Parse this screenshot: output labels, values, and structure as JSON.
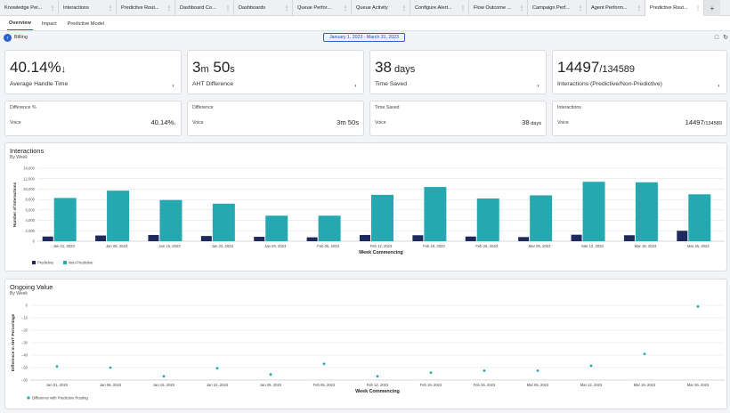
{
  "tabs": [
    {
      "label": "Knowledge Per...",
      "active": false
    },
    {
      "label": "Interactions",
      "active": false
    },
    {
      "label": "Predictive Rout...",
      "active": false
    },
    {
      "label": "Dashboard Co...",
      "active": false
    },
    {
      "label": "Dashboards",
      "active": false
    },
    {
      "label": "Queue Perfor...",
      "active": false
    },
    {
      "label": "Queue Activity",
      "active": false
    },
    {
      "label": "Configure Alert...",
      "active": false
    },
    {
      "label": "Flow Outcome ...",
      "active": false
    },
    {
      "label": "Campaign Perf...",
      "active": false
    },
    {
      "label": "Agent Perform...",
      "active": false
    },
    {
      "label": "Predictive Rout...",
      "active": true
    }
  ],
  "add_tab_label": "+",
  "subtabs": [
    {
      "label": "Overview",
      "active": true
    },
    {
      "label": "Impact",
      "active": false
    },
    {
      "label": "Predictive Model",
      "active": false
    }
  ],
  "filter": {
    "back_icon": "arrow-left-icon",
    "breadcrumb": "Billing",
    "date_range": "January 1, 2023 - March 31, 2023"
  },
  "kpis": [
    {
      "value": "40.14%",
      "suffix": "",
      "arrow": "↓",
      "label": "Average Handle Time",
      "icon": "chart-icon"
    },
    {
      "value": "3",
      "value_unit1": "m",
      "value2": " 50",
      "value_unit2": "s",
      "label": "AHT Difference",
      "icon": "chart-icon"
    },
    {
      "value": "38",
      "suffix": " days",
      "label": "Time Saved",
      "icon": "chart-icon"
    },
    {
      "value": "14497",
      "suffix": "/134589",
      "label": "Interactions (Predictive/Non-Predictive)",
      "icon": "chart-icon"
    }
  ],
  "subcards": [
    {
      "title": "Difference %",
      "key": "Voice",
      "value": "40.14%",
      "value_small": "↓"
    },
    {
      "title": "Difference",
      "key": "Voice",
      "value": "3m 50s",
      "value_small": ""
    },
    {
      "title": "Time Saved",
      "key": "Voice",
      "value": "38",
      "value_small": " days"
    },
    {
      "title": "Interactions",
      "key": "Voice",
      "value": "14497",
      "value_small": "/134589"
    }
  ],
  "interactions_panel": {
    "title": "Interactions",
    "subtitle": "By Week"
  },
  "ongoing_panel": {
    "title": "Ongoing Value",
    "subtitle": "By Week"
  },
  "chart_data": [
    {
      "type": "bar",
      "title": "Interactions",
      "subtitle": "By Week",
      "xlabel": "Week Commencing",
      "ylabel": "Number of Interactions",
      "ylim": [
        0,
        14000
      ],
      "yticks": [
        0,
        2000,
        4000,
        6000,
        8000,
        10000,
        12000,
        14000
      ],
      "ytick_labels": [
        "0",
        "2,000",
        "4,000",
        "6,000",
        "8,000",
        "10,000",
        "12,000",
        "14,000"
      ],
      "categories": [
        "Jan 01, 2023",
        "Jan 08, 2023",
        "Jan 15, 2023",
        "Jan 22, 2023",
        "Jan 29, 2023",
        "Feb 05, 2023",
        "Feb 12, 2023",
        "Feb 19, 2023",
        "Feb 26, 2023",
        "Mar 05, 2023",
        "Mar 12, 2023",
        "Mar 19, 2023",
        "Mar 26, 2023"
      ],
      "series": [
        {
          "name": "Predictive",
          "color": "#1f2a5c",
          "values": [
            900,
            1100,
            1200,
            1000,
            850,
            750,
            1200,
            1150,
            900,
            800,
            1250,
            1150,
            2000
          ]
        },
        {
          "name": "Non-Predictive",
          "color": "#26a8b1",
          "values": [
            8300,
            9700,
            7900,
            7200,
            4900,
            4900,
            8900,
            10400,
            8200,
            8800,
            11400,
            11300,
            9000
          ]
        }
      ],
      "legend": "bottom-left",
      "grid": true
    },
    {
      "type": "scatter",
      "title": "Ongoing Value",
      "subtitle": "By Week",
      "xlabel": "Week Commencing",
      "ylabel": "Difference in AHT Percentage",
      "ylim": [
        -60,
        0
      ],
      "yticks": [
        0,
        -10,
        -20,
        -30,
        -40,
        -50,
        -60
      ],
      "ytick_labels": [
        "0",
        "−10",
        "−20",
        "−30",
        "−40",
        "−50",
        "−60"
      ],
      "categories": [
        "Jan 01, 2023",
        "Jan 08, 2023",
        "Jan 15, 2023",
        "Jan 22, 2023",
        "Jan 29, 2023",
        "Feb 05, 2023",
        "Feb 12, 2023",
        "Feb 19, 2023",
        "Feb 26, 2023",
        "Mar 05, 2023",
        "Mar 12, 2023",
        "Mar 19, 2023",
        "Mar 26, 2023"
      ],
      "series": [
        {
          "name": "Difference with Predictive Routing",
          "color": "#26a8b1",
          "values": [
            -49,
            -50,
            -57,
            -50.5,
            -55.5,
            -47,
            -57,
            -54,
            -52.5,
            -52.5,
            -48.5,
            -39,
            -1
          ]
        }
      ],
      "legend": "bottom-left",
      "grid": true
    }
  ]
}
